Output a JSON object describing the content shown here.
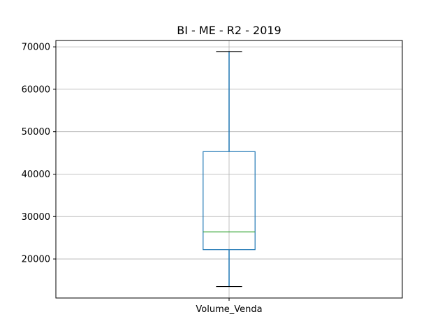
{
  "chart_data": {
    "type": "box",
    "title": "BI - ME - R2 - 2019",
    "xlabel": "",
    "ylabel": "",
    "categories": [
      "Volume_Venda"
    ],
    "boxes": [
      {
        "category": "Volume_Venda",
        "whisker_low": 13500,
        "q1": 22200,
        "median": 26400,
        "q3": 45300,
        "whisker_high": 68900
      }
    ],
    "ylim": [
      10800,
      71500
    ],
    "yticks": [
      20000,
      30000,
      40000,
      50000,
      60000,
      70000
    ],
    "ytick_labels": [
      "20000",
      "30000",
      "40000",
      "50000",
      "60000",
      "70000"
    ],
    "grid": true,
    "colors": {
      "box": "#1f77b4",
      "median": "#2ca02c",
      "caps": "#000000",
      "grid": "#b0b0b0",
      "axes": "#000000"
    }
  }
}
